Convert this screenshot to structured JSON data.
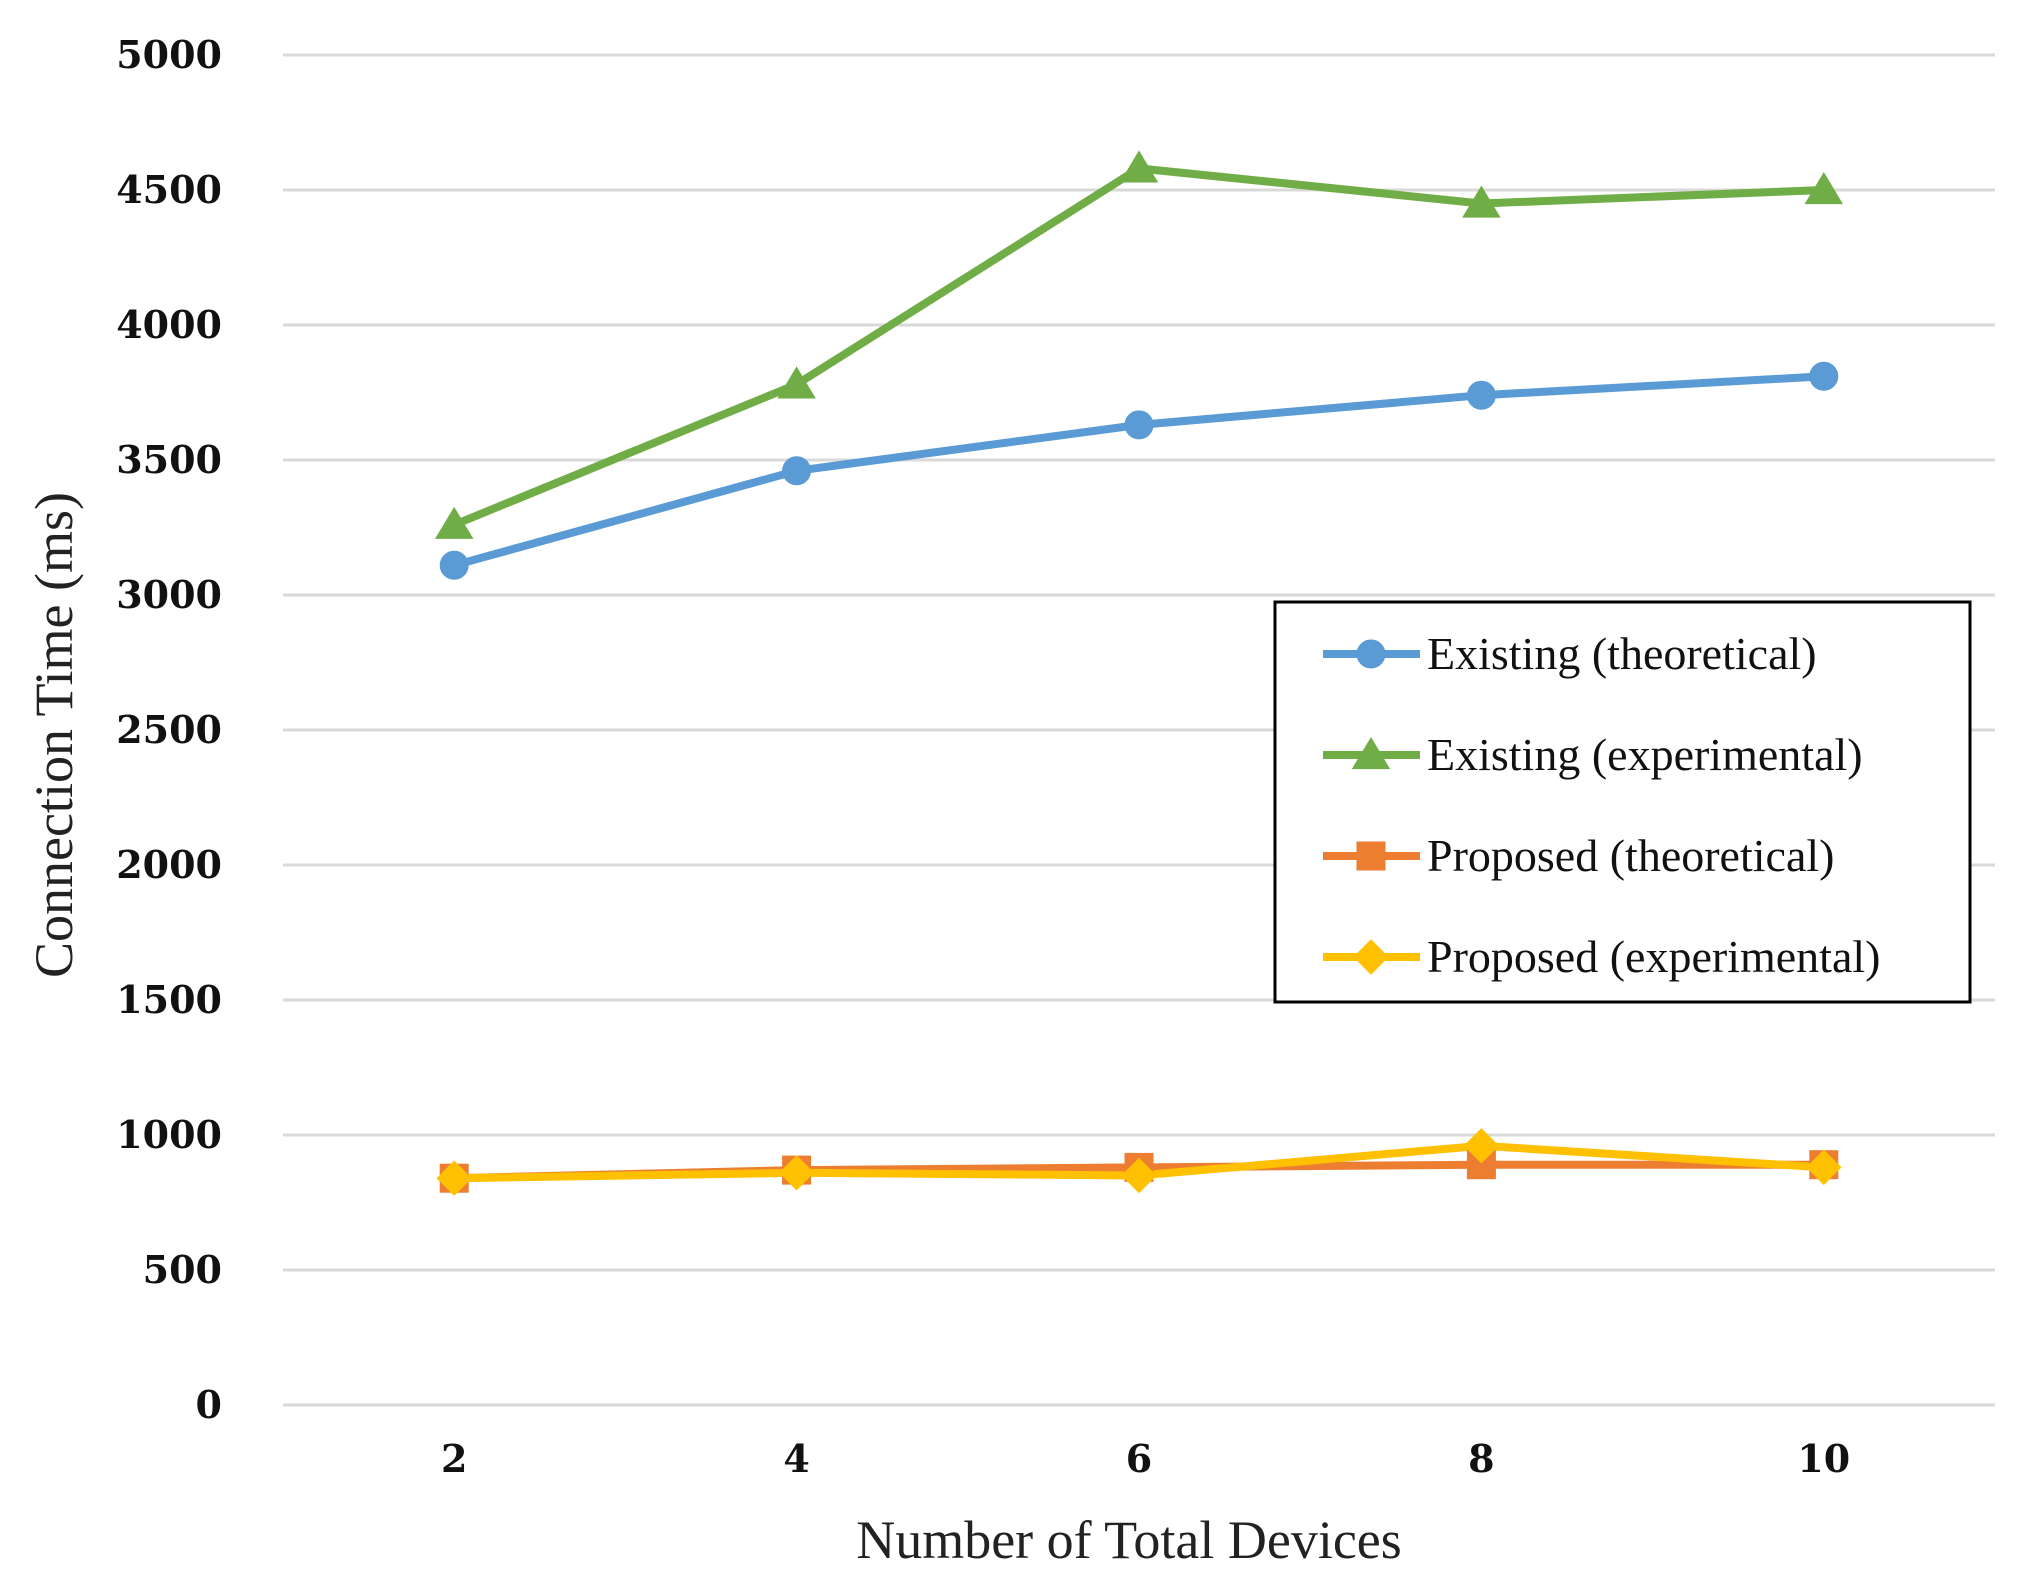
{
  "chart_data": {
    "type": "line",
    "title": "",
    "xlabel": "Number of Total Devices",
    "ylabel": "Connection Time (ms)",
    "x": [
      2,
      4,
      6,
      8,
      10
    ],
    "x_tick_labels": [
      "2",
      "4",
      "6",
      "8",
      "10"
    ],
    "ylim": [
      0,
      5000
    ],
    "y_ticks": [
      0,
      500,
      1000,
      1500,
      2000,
      2500,
      3000,
      3500,
      4000,
      4500,
      5000
    ],
    "y_tick_labels": [
      "0",
      "500",
      "1000",
      "1500",
      "2000",
      "2500",
      "3000",
      "3500",
      "4000",
      "4500",
      "5000"
    ],
    "grid": true,
    "legend_position": "center-right",
    "series": [
      {
        "name": "Existing (theoretical)",
        "values": [
          3110,
          3460,
          3630,
          3740,
          3810
        ],
        "color": "#5b9bd5",
        "marker": "circle"
      },
      {
        "name": "Existing (experimental)",
        "values": [
          3260,
          3780,
          4580,
          4450,
          4500
        ],
        "color": "#70ad47",
        "marker": "triangle"
      },
      {
        "name": "Proposed (theoretical)",
        "values": [
          840,
          870,
          880,
          890,
          890
        ],
        "color": "#ed7d31",
        "marker": "square"
      },
      {
        "name": "Proposed (experimental)",
        "values": [
          840,
          860,
          850,
          960,
          880
        ],
        "color": "#ffc000",
        "marker": "diamond"
      }
    ]
  }
}
